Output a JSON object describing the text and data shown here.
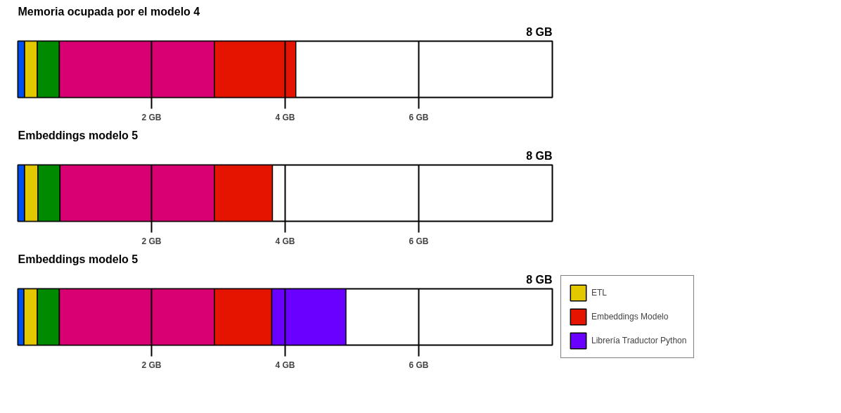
{
  "chart_data": [
    {
      "type": "bar",
      "orientation": "horizontal",
      "stacked": true,
      "title": "Memoria ocupada por el modelo 4",
      "categories": [
        null
      ],
      "xlim": [
        0,
        8
      ],
      "xticks": [
        {
          "value": 2,
          "label": "2 GB"
        },
        {
          "value": 4,
          "label": "4 GB"
        },
        {
          "value": 6,
          "label": "6 GB"
        }
      ],
      "annotations": [
        "8 GB"
      ],
      "grid": "x",
      "series": [
        {
          "color": "#0050ef",
          "values": [
            0.1
          ]
        },
        {
          "color": "#e3c800",
          "values": [
            0.19
          ]
        },
        {
          "color": "#008a00",
          "values": [
            0.33
          ]
        },
        {
          "color": "#d80073",
          "values": [
            2.32
          ]
        },
        {
          "color": "#e51400",
          "values": [
            1.22
          ]
        }
      ]
    },
    {
      "type": "bar",
      "orientation": "horizontal",
      "stacked": true,
      "title": "Embeddings modelo 5",
      "categories": [
        null
      ],
      "xlim": [
        0,
        8
      ],
      "xticks": [
        {
          "value": 2,
          "label": "2 GB"
        },
        {
          "value": 4,
          "label": "4 GB"
        },
        {
          "value": 6,
          "label": "6 GB"
        }
      ],
      "annotations": [
        "8 GB"
      ],
      "grid": "x",
      "series": [
        {
          "color": "#0050ef",
          "values": [
            0.1
          ]
        },
        {
          "color": "#e3c800",
          "values": [
            0.2
          ]
        },
        {
          "color": "#008a00",
          "values": [
            0.33
          ]
        },
        {
          "color": "#d80073",
          "values": [
            2.31
          ]
        },
        {
          "color": "#e51400",
          "values": [
            0.87
          ]
        }
      ]
    },
    {
      "type": "bar",
      "orientation": "horizontal",
      "stacked": true,
      "title": "Embeddings modelo 5",
      "categories": [
        null
      ],
      "xlim": [
        0,
        8
      ],
      "xticks": [
        {
          "value": 2,
          "label": "2 GB"
        },
        {
          "value": 4,
          "label": "4 GB"
        },
        {
          "value": 6,
          "label": "6 GB"
        }
      ],
      "annotations": [
        "8 GB"
      ],
      "grid": "x",
      "legend": "right",
      "series": [
        {
          "color": "#0050ef",
          "values": [
            0.09
          ]
        },
        {
          "name": "ETL",
          "color": "#e3c800",
          "values": [
            0.2
          ]
        },
        {
          "color": "#008a00",
          "values": [
            0.33
          ]
        },
        {
          "color": "#d80073",
          "values": [
            2.32
          ]
        },
        {
          "name": "Embeddings Modelo",
          "color": "#e51400",
          "values": [
            0.86
          ]
        },
        {
          "name": "Librería Traductor Python",
          "color": "#6a00ff",
          "values": [
            1.11
          ]
        }
      ]
    }
  ]
}
